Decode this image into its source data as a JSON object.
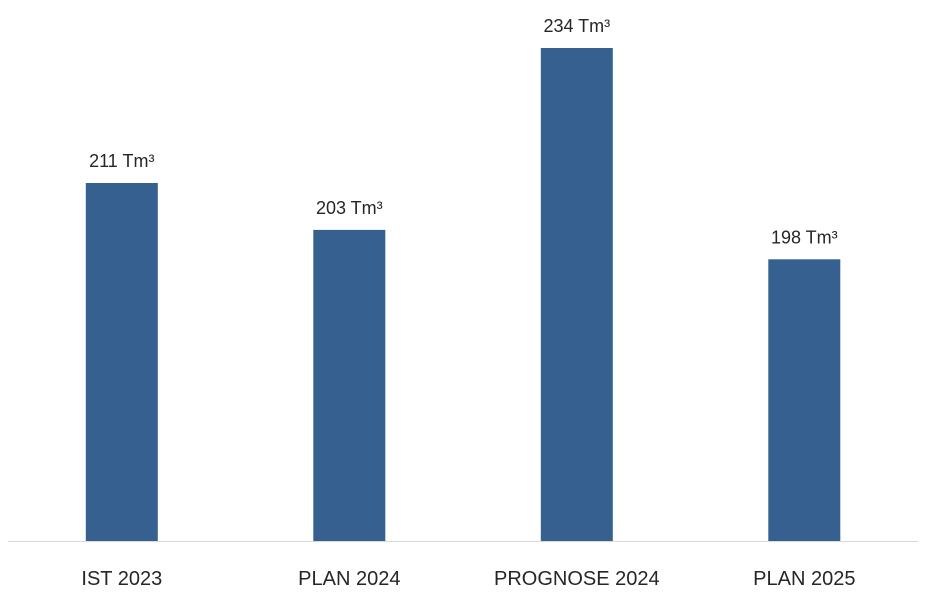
{
  "chart_data": {
    "type": "bar",
    "categories": [
      "IST 2023",
      "PLAN 2024",
      "PROGNOSE 2024",
      "PLAN 2025"
    ],
    "values": [
      211,
      203,
      234,
      198
    ],
    "data_labels": [
      "211 Tm³",
      "203 Tm³",
      "234 Tm³",
      "198 Tm³"
    ],
    "unit": "Tm³",
    "title": "",
    "xlabel": "",
    "ylabel": "",
    "y_axis_visible": false,
    "grid": false,
    "legend": "none",
    "colors": {
      "bar": "#36608F",
      "axis_line": "#D9D9D9",
      "text": "#262626"
    }
  }
}
